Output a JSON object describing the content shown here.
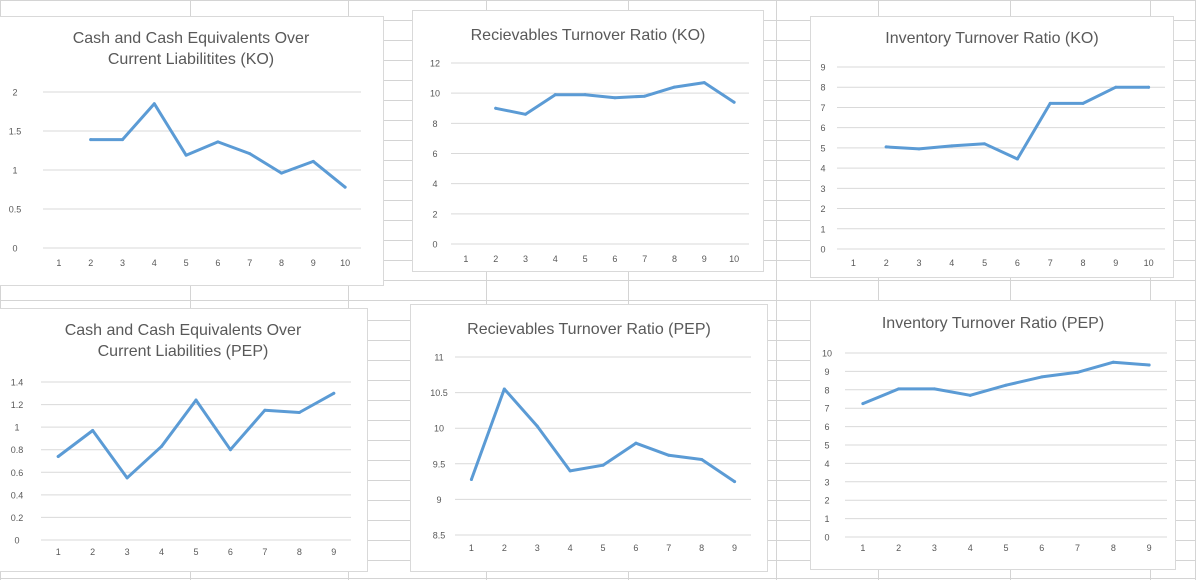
{
  "colors": {
    "line": "#5b9bd5",
    "gridline": "#d9d9d9",
    "axis_text": "#595959",
    "sheet_gridline": "#d4d4d4"
  },
  "chart_data": [
    {
      "id": "ko-cash",
      "type": "line",
      "title": "Cash and Cash Equivalents Over\nCurrent Liabilitites (KO)",
      "categories": [
        "1",
        "2",
        "3",
        "4",
        "5",
        "6",
        "7",
        "8",
        "9",
        "10"
      ],
      "series": [
        {
          "values": [
            null,
            1.39,
            1.39,
            1.85,
            1.19,
            1.36,
            1.21,
            0.96,
            1.11,
            0.78
          ]
        }
      ],
      "ylim": [
        0,
        2
      ],
      "yticks": [
        "0",
        "0.5",
        "1",
        "1.5",
        "2"
      ],
      "grid": true,
      "legend": "none"
    },
    {
      "id": "ko-receivables",
      "type": "line",
      "title": "Recievables Turnover Ratio (KO)",
      "categories": [
        "1",
        "2",
        "3",
        "4",
        "5",
        "6",
        "7",
        "8",
        "9",
        "10"
      ],
      "series": [
        {
          "values": [
            null,
            9.0,
            8.6,
            9.9,
            9.9,
            9.7,
            9.8,
            10.4,
            10.7,
            9.4
          ]
        }
      ],
      "ylim": [
        0,
        12
      ],
      "yticks": [
        "0",
        "2",
        "4",
        "6",
        "8",
        "10",
        "12"
      ],
      "grid": true,
      "legend": "none"
    },
    {
      "id": "ko-inventory",
      "type": "line",
      "title": "Inventory Turnover Ratio (KO)",
      "categories": [
        "1",
        "2",
        "3",
        "4",
        "5",
        "6",
        "7",
        "8",
        "9",
        "10"
      ],
      "series": [
        {
          "values": [
            null,
            5.05,
            4.95,
            5.1,
            5.2,
            4.45,
            7.2,
            7.2,
            8.0,
            8.0
          ]
        }
      ],
      "ylim": [
        0,
        9
      ],
      "yticks": [
        "0",
        "1",
        "2",
        "3",
        "4",
        "5",
        "6",
        "7",
        "8",
        "9"
      ],
      "grid": true,
      "legend": "none"
    },
    {
      "id": "pep-cash",
      "type": "line",
      "title": "Cash and Cash Equivalents Over\nCurrent Liabilities (PEP)",
      "categories": [
        "1",
        "2",
        "3",
        "4",
        "5",
        "6",
        "7",
        "8",
        "9"
      ],
      "series": [
        {
          "values": [
            0.74,
            0.97,
            0.55,
            0.83,
            1.24,
            0.8,
            1.15,
            1.13,
            1.3
          ]
        }
      ],
      "ylim": [
        0,
        1.4
      ],
      "yticks": [
        "0",
        "0.2",
        "0.4",
        "0.6",
        "0.8",
        "1",
        "1.2",
        "1.4"
      ],
      "grid": true,
      "legend": "none"
    },
    {
      "id": "pep-receivables",
      "type": "line",
      "title": "Recievables Turnover Ratio (PEP)",
      "categories": [
        "1",
        "2",
        "3",
        "4",
        "5",
        "6",
        "7",
        "8",
        "9"
      ],
      "series": [
        {
          "values": [
            9.28,
            10.55,
            10.03,
            9.4,
            9.48,
            9.79,
            9.62,
            9.56,
            9.25
          ]
        }
      ],
      "ylim": [
        8.5,
        11
      ],
      "yticks": [
        "8.5",
        "9",
        "9.5",
        "10",
        "10.5",
        "11"
      ],
      "grid": true,
      "legend": "none"
    },
    {
      "id": "pep-inventory",
      "type": "line",
      "title": "Inventory Turnover Ratio (PEP)",
      "categories": [
        "1",
        "2",
        "3",
        "4",
        "5",
        "6",
        "7",
        "8",
        "9"
      ],
      "series": [
        {
          "values": [
            7.25,
            8.05,
            8.05,
            7.7,
            8.25,
            8.7,
            8.95,
            9.5,
            9.35
          ]
        }
      ],
      "ylim": [
        0,
        10
      ],
      "yticks": [
        "0",
        "1",
        "2",
        "3",
        "4",
        "5",
        "6",
        "7",
        "8",
        "9",
        "10"
      ],
      "grid": true,
      "legend": "none"
    }
  ]
}
